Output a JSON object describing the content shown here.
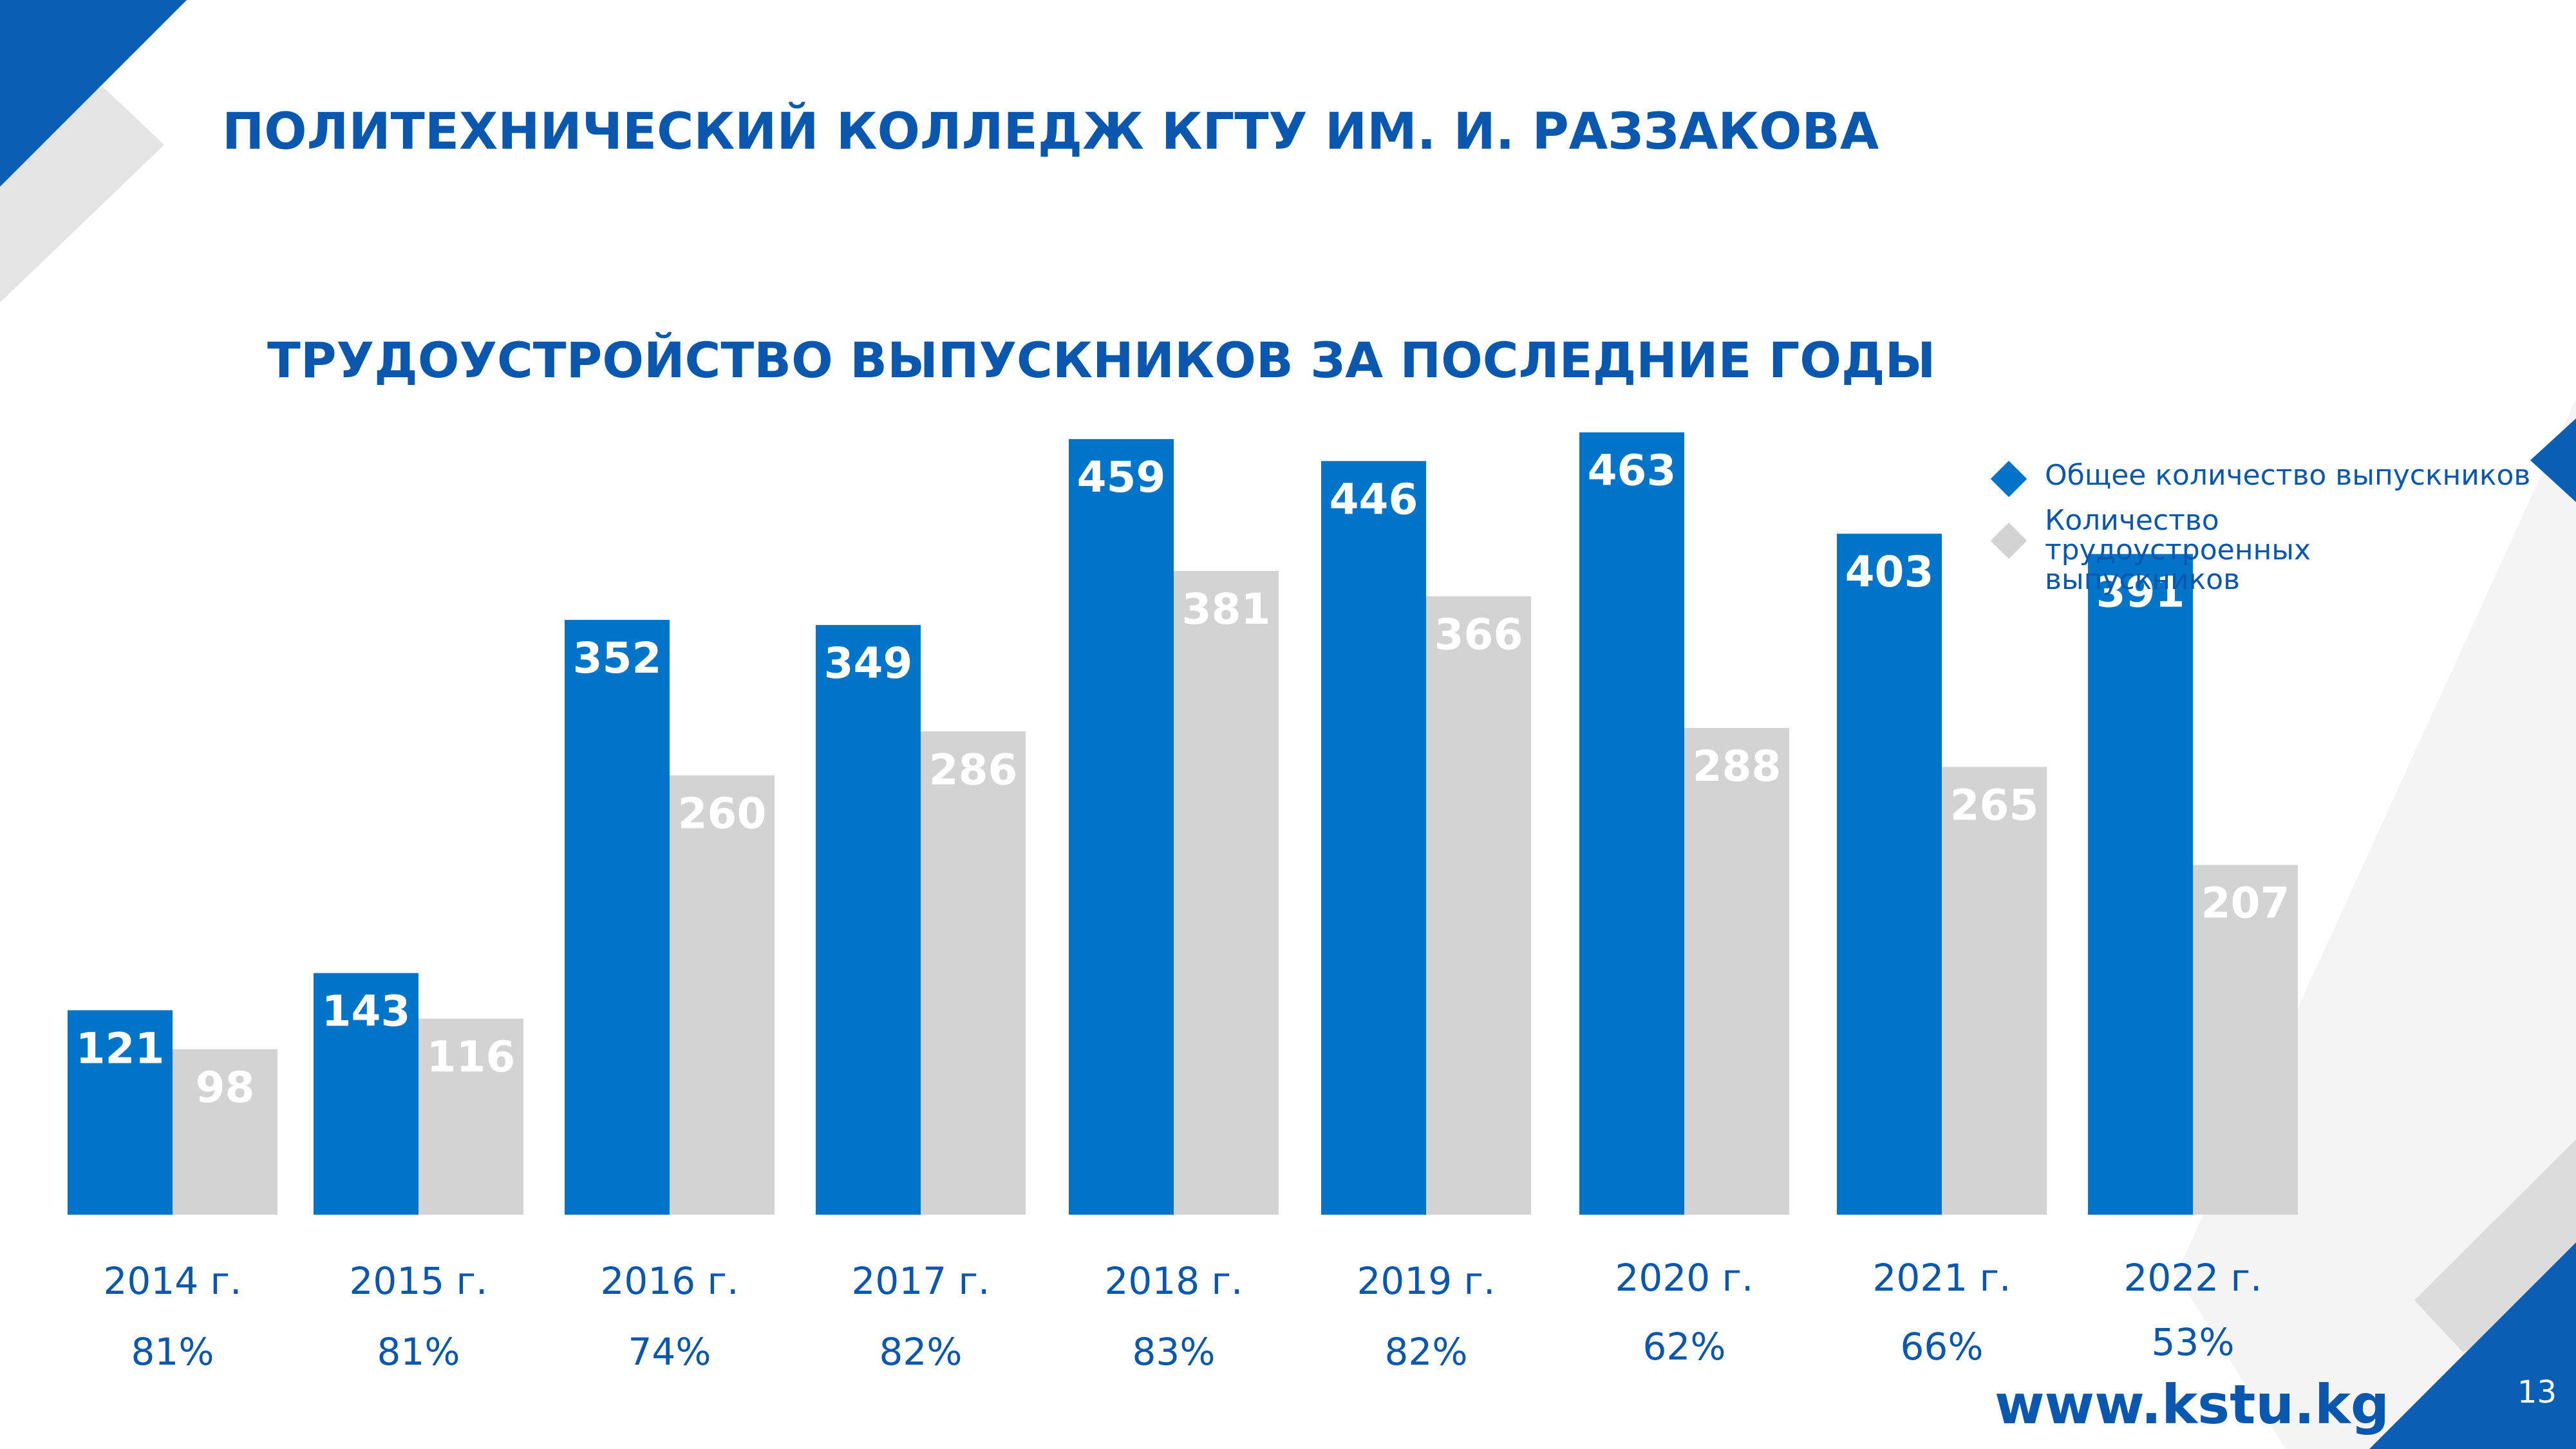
{
  "header": {
    "title": "ПОЛИТЕХНИЧЕСКИЙ КОЛЛЕДЖ КГТУ ИМ. И. РАЗЗАКОВА",
    "subtitle": "ТРУДОУСТРОЙСТВО ВЫПУСКНИКОВ ЗА ПОСЛЕДНИЕ ГОДЫ"
  },
  "colors": {
    "primary_blue": "#0074c8",
    "light_gray": "#d3d3d3",
    "text_blue": "#0a57b0",
    "decor_gray": "#e4e4e4"
  },
  "chart_data": {
    "type": "bar",
    "categories": [
      "2014 г.",
      "2015 г.",
      "2016 г.",
      "2017 г.",
      "2018 г.",
      "2019 г.",
      "2020 г.",
      "2021 г.",
      "2022 г."
    ],
    "percentages": [
      "81%",
      "81%",
      "74%",
      "82%",
      "83%",
      "82%",
      "62%",
      "66%",
      "53%"
    ],
    "series": [
      {
        "name": "Общее количество выпускников",
        "color": "#0074c8",
        "values": [
          121,
          143,
          352,
          349,
          459,
          446,
          463,
          403,
          391
        ]
      },
      {
        "name": "Количество трудоустроенных выпускников",
        "color": "#d3d3d3",
        "values": [
          98,
          116,
          260,
          286,
          381,
          366,
          288,
          265,
          207
        ]
      }
    ],
    "legend_position": "top-right",
    "grid": false,
    "ylim": [
      0,
      500
    ]
  },
  "footer": {
    "website": "www.kstu.kg",
    "page_number": "13"
  }
}
